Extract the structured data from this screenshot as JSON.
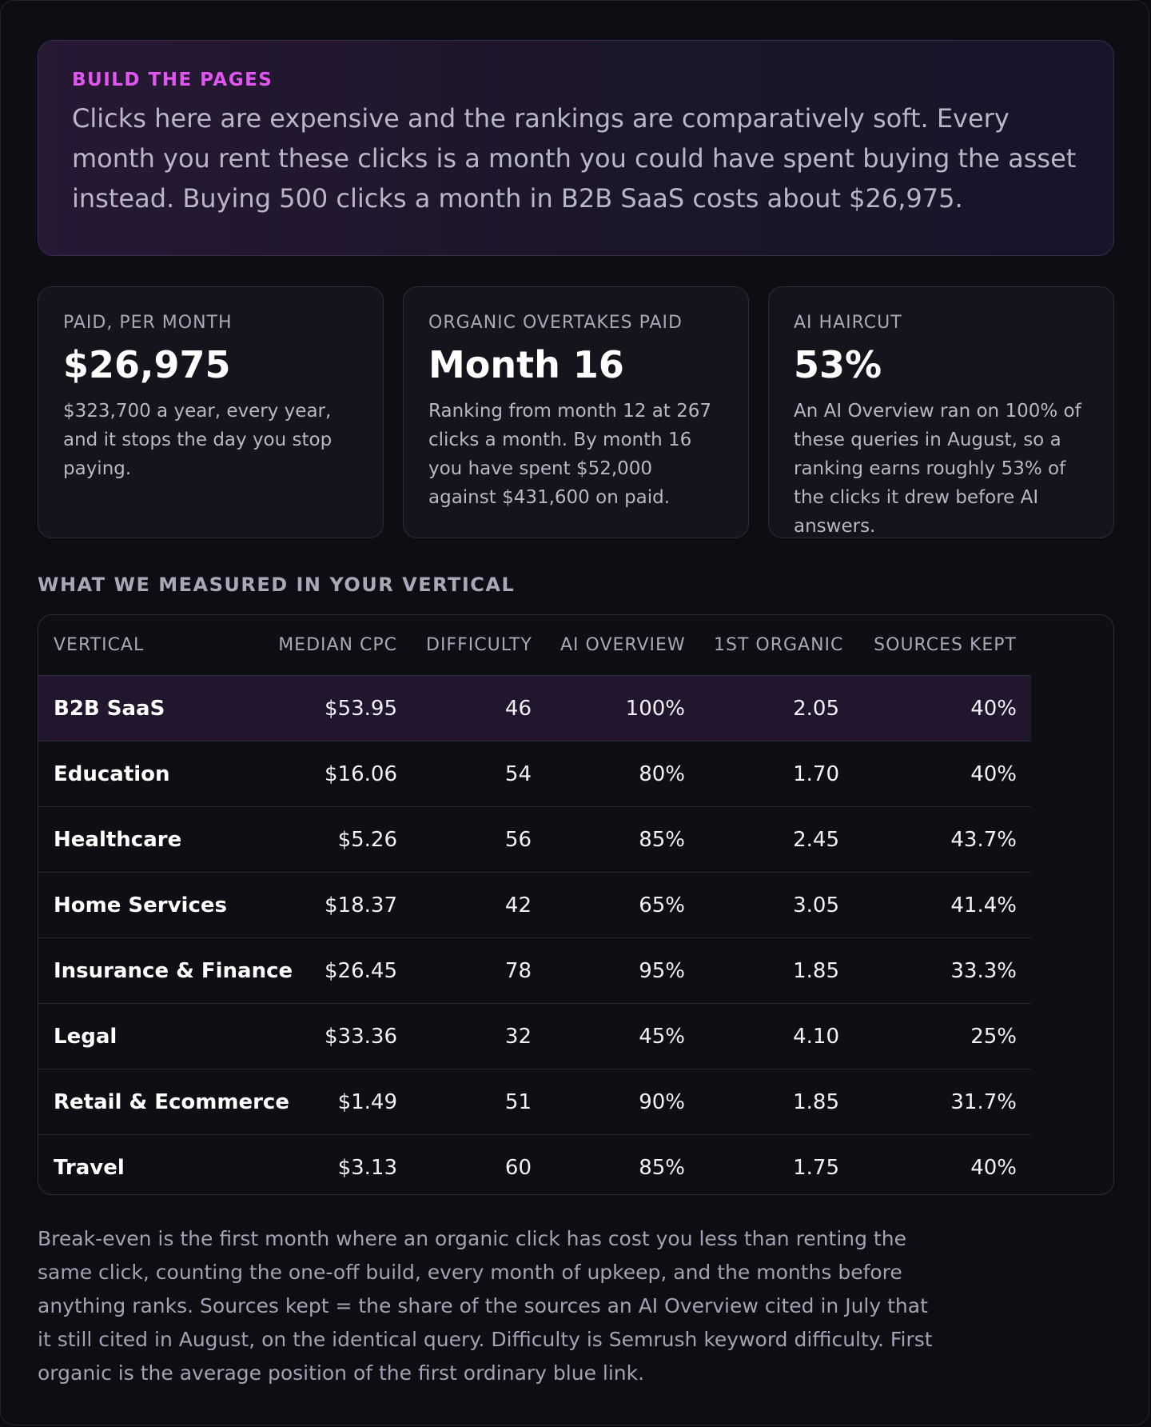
{
  "hero": {
    "eyebrow": "BUILD THE PAGES",
    "text": "Clicks here are expensive and the rankings are comparatively soft. Every month you rent these clicks is a month you could have spent buying the asset instead. Buying 500 clicks a month in B2B SaaS costs about $26,975."
  },
  "cards": [
    {
      "label": "PAID, PER MONTH",
      "value": "$26,975",
      "desc": "$323,700 a year, every year, and it stops the day you stop paying."
    },
    {
      "label": "ORGANIC OVERTAKES PAID",
      "value": "Month 16",
      "desc": "Ranking from month 12 at 267 clicks a month. By month 16 you have spent $52,000 against $431,600 on paid."
    },
    {
      "label": "AI HAIRCUT",
      "value": "53%",
      "desc": "An AI Overview ran on 100% of these queries in August, so a ranking earns roughly 53% of the clicks it drew before AI answers."
    }
  ],
  "section_title": "WHAT WE MEASURED IN YOUR VERTICAL",
  "table": {
    "headers": [
      "VERTICAL",
      "MEDIAN CPC",
      "DIFFICULTY",
      "AI OVERVIEW",
      "1ST ORGANIC",
      "SOURCES KEPT"
    ],
    "rows": [
      [
        "B2B SaaS",
        "$53.95",
        "46",
        "100%",
        "2.05",
        "40%"
      ],
      [
        "Education",
        "$16.06",
        "54",
        "80%",
        "1.70",
        "40%"
      ],
      [
        "Healthcare",
        "$5.26",
        "56",
        "85%",
        "2.45",
        "43.7%"
      ],
      [
        "Home Services",
        "$18.37",
        "42",
        "65%",
        "3.05",
        "41.4%"
      ],
      [
        "Insurance & Finance",
        "$26.45",
        "78",
        "95%",
        "1.85",
        "33.3%"
      ],
      [
        "Legal",
        "$33.36",
        "32",
        "45%",
        "4.10",
        "25%"
      ],
      [
        "Retail & Ecommerce",
        "$1.49",
        "51",
        "90%",
        "1.85",
        "31.7%"
      ],
      [
        "Travel",
        "$3.13",
        "60",
        "85%",
        "1.75",
        "40%"
      ]
    ],
    "highlight_color": "#22162e"
  },
  "footnote": "Break-even is the first month where an organic click has cost you less than renting the same click, counting the one-off build, every month of upkeep, and the months before anything ranks. Sources kept = the share of the sources an AI Overview cited in July that it still cited in August, on the identical query. Difficulty is Semrush keyword difficulty. First organic is the average position of the first ordinary blue link.",
  "colors": {
    "accent": "#e056f0",
    "background": "#0d0d14"
  }
}
